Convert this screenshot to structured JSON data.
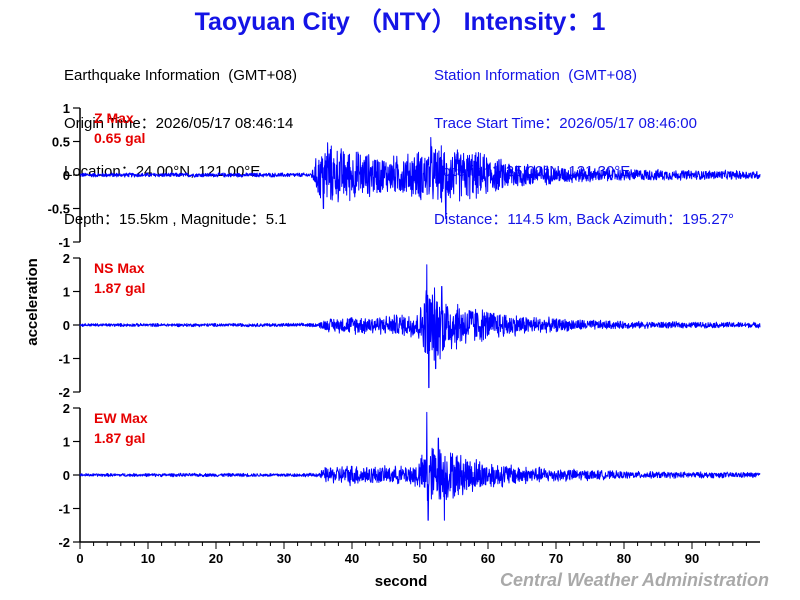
{
  "header": {
    "title": "Taoyuan City （NTY） Intensity：1"
  },
  "earthquake_info": {
    "heading": "Earthquake Information  (GMT+08)",
    "origin_time": "Origin Time：2026/05/17 08:46:14",
    "location": "Location：24.00°N, 121.00°E",
    "depth_magnitude": "Depth：15.5km , Magnitude：5.1"
  },
  "station_info": {
    "heading": "Station Information  (GMT+08)",
    "trace_start": "Trace Start Time：2026/05/17 08:46:00",
    "location": "Location：25.00°N, 121.30°E",
    "distance_azimuth": "Distance：114.5 km, Back Azimuth：195.27°"
  },
  "footer": {
    "credit": "Central Weather Administration"
  },
  "colors": {
    "title": "#1414e6",
    "trace": "#0000ff",
    "max_label": "#e60000",
    "axis": "#000000",
    "credit": "#a9a9a9"
  },
  "chart_data": {
    "type": "line",
    "xlabel": "second",
    "ylabel": "acceleration",
    "xlim": [
      0,
      100
    ],
    "xticks": [
      0,
      10,
      20,
      30,
      40,
      50,
      60,
      70,
      80,
      90
    ],
    "grid": false,
    "panels": [
      {
        "id": "Z",
        "label": "Z Max",
        "max_text": "0.65 gal",
        "ylim": [
          -1,
          1
        ],
        "yticks": [
          1,
          0.5,
          0,
          -0.5,
          -1
        ],
        "envelope": [
          [
            0,
            0.035
          ],
          [
            34,
            0.035
          ],
          [
            35,
            0.38
          ],
          [
            36,
            0.5
          ],
          [
            40,
            0.42
          ],
          [
            45,
            0.3
          ],
          [
            48,
            0.35
          ],
          [
            52,
            0.48
          ],
          [
            55,
            0.45
          ],
          [
            58,
            0.4
          ],
          [
            62,
            0.26
          ],
          [
            66,
            0.2
          ],
          [
            70,
            0.14
          ],
          [
            80,
            0.1
          ],
          [
            90,
            0.08
          ],
          [
            100,
            0.07
          ]
        ],
        "peaks": [
          [
            35.8,
            -0.5
          ],
          [
            36.4,
            0.48
          ],
          [
            51.6,
            0.56
          ],
          [
            53.8,
            -0.65
          ]
        ]
      },
      {
        "id": "NS",
        "label": "NS Max",
        "max_text": "1.87 gal",
        "ylim": [
          -2,
          2
        ],
        "yticks": [
          2,
          1,
          0,
          -1,
          -2
        ],
        "envelope": [
          [
            0,
            0.05
          ],
          [
            35,
            0.06
          ],
          [
            36,
            0.2
          ],
          [
            40,
            0.3
          ],
          [
            44,
            0.3
          ],
          [
            48,
            0.38
          ],
          [
            50,
            0.55
          ],
          [
            51,
            1.4
          ],
          [
            53,
            1.1
          ],
          [
            56,
            0.75
          ],
          [
            60,
            0.5
          ],
          [
            65,
            0.32
          ],
          [
            70,
            0.22
          ],
          [
            80,
            0.12
          ],
          [
            90,
            0.1
          ],
          [
            100,
            0.09
          ]
        ],
        "peaks": [
          [
            51.0,
            1.8
          ],
          [
            51.3,
            -1.87
          ],
          [
            53.2,
            1.15
          ],
          [
            52.3,
            -1.3
          ]
        ]
      },
      {
        "id": "EW",
        "label": "EW Max",
        "max_text": "1.87 gal",
        "ylim": [
          -2,
          2
        ],
        "yticks": [
          2,
          1,
          0,
          -1,
          -2
        ],
        "envelope": [
          [
            0,
            0.05
          ],
          [
            35,
            0.06
          ],
          [
            36,
            0.25
          ],
          [
            40,
            0.35
          ],
          [
            44,
            0.28
          ],
          [
            48,
            0.3
          ],
          [
            50,
            0.5
          ],
          [
            51,
            1.05
          ],
          [
            53,
            0.95
          ],
          [
            56,
            0.7
          ],
          [
            60,
            0.45
          ],
          [
            65,
            0.3
          ],
          [
            70,
            0.22
          ],
          [
            80,
            0.12
          ],
          [
            90,
            0.1
          ],
          [
            100,
            0.09
          ]
        ],
        "peaks": [
          [
            51.0,
            1.87
          ],
          [
            51.2,
            -1.35
          ],
          [
            52.7,
            1.1
          ],
          [
            53.6,
            -1.35
          ]
        ]
      }
    ]
  }
}
